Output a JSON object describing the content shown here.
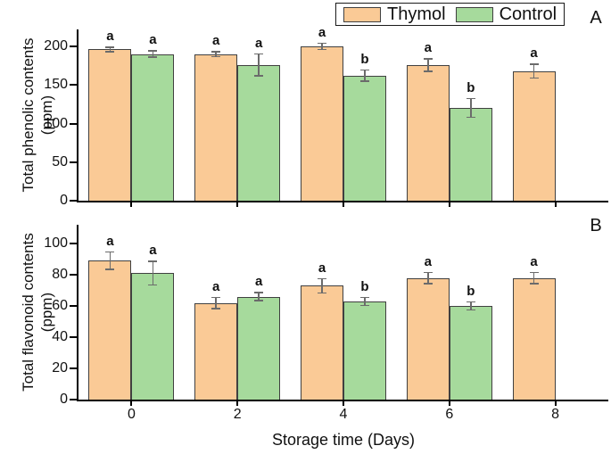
{
  "figure": {
    "xlabel": "Storage time (Days)",
    "legend": {
      "items": [
        {
          "label": "Thymol",
          "color": "#FACA96"
        },
        {
          "label": "Control",
          "color": "#A6DA9C"
        }
      ]
    },
    "colors": {
      "thymol_fill": "#FACA96",
      "control_fill": "#A6DA9C",
      "bar_border": "#404040",
      "error_bar": "#6b6b6b",
      "axis": "#000000"
    }
  },
  "chart_data": [
    {
      "type": "bar",
      "panel_label": "A",
      "title": "",
      "ylabel": "Total phenolic contents (ppm)",
      "ylabel_line1": "Total phenolic contents",
      "ylabel_line2": "(ppm)",
      "xlabel": "Storage time (Days)",
      "categories": [
        "0",
        "2",
        "4",
        "6",
        "8"
      ],
      "ylim": [
        0,
        222
      ],
      "yticks": [
        0,
        50,
        100,
        150,
        200
      ],
      "grid": false,
      "legend_position": "top-right",
      "series": [
        {
          "name": "Thymol",
          "values": [
            196,
            190,
            200,
            176,
            168
          ],
          "errors": [
            4,
            4,
            5,
            9,
            10
          ],
          "letters": [
            "a",
            "a",
            "a",
            "a",
            "a"
          ]
        },
        {
          "name": "Control",
          "values": [
            190,
            176,
            162,
            120,
            null
          ],
          "errors": [
            5,
            15,
            8,
            13,
            null
          ],
          "letters": [
            "a",
            "a",
            "b",
            "b",
            null
          ]
        }
      ]
    },
    {
      "type": "bar",
      "panel_label": "B",
      "title": "",
      "ylabel": "Total flavonoid contents (ppm)",
      "ylabel_line1": "Total flavonoid contents",
      "ylabel_line2": "(ppm)",
      "xlabel": "Storage time (Days)",
      "categories": [
        "0",
        "2",
        "4",
        "6",
        "8"
      ],
      "ylim": [
        0,
        112
      ],
      "yticks": [
        0,
        20,
        40,
        60,
        80,
        100
      ],
      "grid": false,
      "legend_position": "top-right",
      "series": [
        {
          "name": "Thymol",
          "values": [
            89,
            62,
            73,
            78,
            78
          ],
          "errors": [
            6,
            4,
            5,
            4,
            4
          ],
          "letters": [
            "a",
            "a",
            "a",
            "a",
            "a"
          ]
        },
        {
          "name": "Control",
          "values": [
            81,
            66,
            63,
            60,
            null
          ],
          "errors": [
            8,
            3,
            3,
            3,
            null
          ],
          "letters": [
            "a",
            "a",
            "b",
            "b",
            null
          ]
        }
      ]
    }
  ]
}
